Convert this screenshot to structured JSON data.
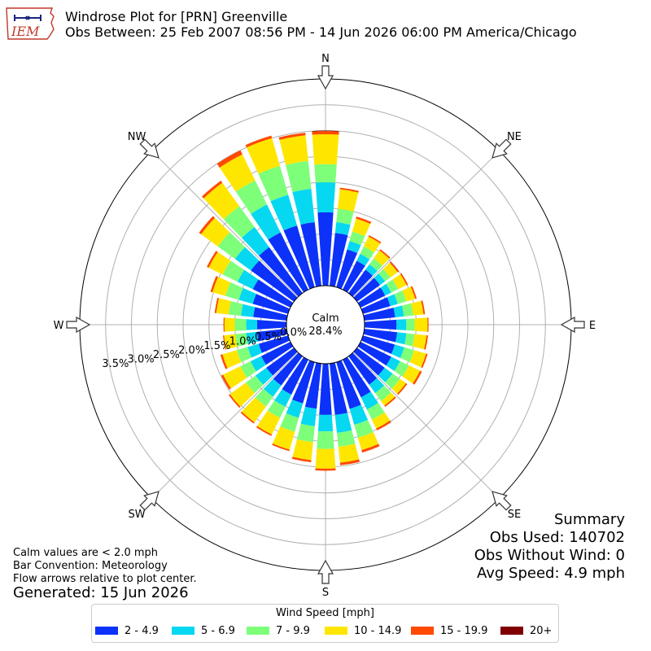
{
  "header": {
    "logo_text": "IEM",
    "title": "Windrose Plot for [PRN] Greenville",
    "subtitle": "Obs Between: 25 Feb 2007 08:56 PM - 14 Jun 2026 06:00 PM America/Chicago"
  },
  "summary": {
    "heading": "Summary",
    "obs_used": "Obs Used: 140702",
    "obs_without_wind": "Obs Without Wind: 0",
    "avg_speed": "Avg Speed: 4.9 mph"
  },
  "notes": {
    "calm_note": "Calm values are < 2.0 mph",
    "bar_convention": "Bar Convention: Meteorology",
    "flow_arrows": "Flow arrows relative to plot center.",
    "generated": "Generated: 15 Jun 2026"
  },
  "legend": {
    "title": "Wind Speed [mph]",
    "items": [
      {
        "label": "2 - 4.9",
        "color": "#0c31f9"
      },
      {
        "label": "5 - 6.9",
        "color": "#05d8f0"
      },
      {
        "label": "7 - 9.9",
        "color": "#7dff7a"
      },
      {
        "label": "10 - 14.9",
        "color": "#ffe600"
      },
      {
        "label": "15 - 19.9",
        "color": "#ff4a00"
      },
      {
        "label": "20+",
        "color": "#800000"
      }
    ]
  },
  "chart_data": {
    "type": "windrose",
    "title": "Windrose Plot for [PRN] Greenville",
    "calm_label": "Calm",
    "calm_value": "28.4%",
    "radial_unit": "%",
    "radial_ticks": [
      0.0,
      0.5,
      1.0,
      1.5,
      2.0,
      2.5,
      3.0,
      3.5
    ],
    "radial_tick_labels": [
      "0.0%",
      "0.5%",
      "1.0%",
      "1.5%",
      "2.0%",
      "2.5%",
      "3.0%",
      "3.5%"
    ],
    "rmax": 4.0,
    "compass_labels": [
      {
        "label": "N",
        "deg": 0
      },
      {
        "label": "NE",
        "deg": 45
      },
      {
        "label": "E",
        "deg": 90
      },
      {
        "label": "SE",
        "deg": 135
      },
      {
        "label": "S",
        "deg": 180
      },
      {
        "label": "SW",
        "deg": 225
      },
      {
        "label": "W",
        "deg": 270
      },
      {
        "label": "NW",
        "deg": 315
      }
    ],
    "bin_width_deg": 10,
    "speed_bins": [
      "2 - 4.9",
      "5 - 6.9",
      "7 - 9.9",
      "10 - 14.9",
      "15 - 19.9",
      "20+"
    ],
    "colors": [
      "#0c31f9",
      "#05d8f0",
      "#7dff7a",
      "#ffe600",
      "#ff4a00",
      "#800000"
    ],
    "directions": [
      {
        "deg": 0,
        "cum": [
          1.42,
          2.0,
          2.35,
          2.93,
          2.99,
          3.0
        ]
      },
      {
        "deg": 10,
        "cum": [
          1.03,
          1.24,
          1.5,
          1.88,
          1.91,
          1.91
        ]
      },
      {
        "deg": 20,
        "cum": [
          0.76,
          0.93,
          1.12,
          1.38,
          1.42,
          1.42
        ]
      },
      {
        "deg": 30,
        "cum": [
          0.62,
          0.77,
          0.93,
          1.14,
          1.17,
          1.17
        ]
      },
      {
        "deg": 40,
        "cum": [
          0.56,
          0.69,
          0.83,
          1.02,
          1.05,
          1.05
        ]
      },
      {
        "deg": 50,
        "cum": [
          0.55,
          0.67,
          0.8,
          0.97,
          1.0,
          1.0
        ]
      },
      {
        "deg": 60,
        "cum": [
          0.53,
          0.66,
          0.81,
          0.99,
          1.02,
          1.02
        ]
      },
      {
        "deg": 70,
        "cum": [
          0.55,
          0.7,
          0.87,
          1.05,
          1.08,
          1.08
        ]
      },
      {
        "deg": 80,
        "cum": [
          0.6,
          0.77,
          0.95,
          1.15,
          1.18,
          1.18
        ]
      },
      {
        "deg": 90,
        "cum": [
          0.62,
          0.81,
          0.97,
          1.22,
          1.24,
          1.24
        ]
      },
      {
        "deg": 100,
        "cum": [
          0.64,
          0.82,
          0.98,
          1.21,
          1.24,
          1.24
        ]
      },
      {
        "deg": 110,
        "cum": [
          0.64,
          0.83,
          1.03,
          1.27,
          1.3,
          1.3
        ]
      },
      {
        "deg": 120,
        "cum": [
          0.66,
          0.85,
          1.04,
          1.28,
          1.32,
          1.32
        ]
      },
      {
        "deg": 130,
        "cum": [
          0.66,
          0.85,
          1.03,
          1.17,
          1.2,
          1.2
        ]
      },
      {
        "deg": 140,
        "cum": [
          0.68,
          0.88,
          1.07,
          1.18,
          1.21,
          1.21
        ]
      },
      {
        "deg": 150,
        "cum": [
          0.81,
          1.07,
          1.29,
          1.48,
          1.52,
          1.52
        ]
      },
      {
        "deg": 160,
        "cum": [
          0.94,
          1.26,
          1.52,
          1.77,
          1.82,
          1.82
        ]
      },
      {
        "deg": 170,
        "cum": [
          1.0,
          1.35,
          1.62,
          1.93,
          1.98,
          1.98
        ]
      },
      {
        "deg": 180,
        "cum": [
          0.99,
          1.31,
          1.65,
          2.03,
          2.07,
          2.07
        ]
      },
      {
        "deg": 190,
        "cum": [
          0.88,
          1.22,
          1.53,
          1.88,
          1.92,
          1.92
        ]
      },
      {
        "deg": 200,
        "cum": [
          0.83,
          1.12,
          1.4,
          1.76,
          1.79,
          1.79
        ]
      },
      {
        "deg": 210,
        "cum": [
          0.75,
          1.01,
          1.25,
          1.61,
          1.64,
          1.64
        ]
      },
      {
        "deg": 220,
        "cum": [
          0.7,
          0.97,
          1.2,
          1.58,
          1.61,
          1.61
        ]
      },
      {
        "deg": 230,
        "cum": [
          0.66,
          0.92,
          1.15,
          1.53,
          1.56,
          1.56
        ]
      },
      {
        "deg": 240,
        "cum": [
          0.63,
          0.86,
          1.08,
          1.45,
          1.49,
          1.49
        ]
      },
      {
        "deg": 250,
        "cum": [
          0.59,
          0.81,
          1.03,
          1.32,
          1.36,
          1.36
        ]
      },
      {
        "deg": 260,
        "cum": [
          0.58,
          0.79,
          1.0,
          1.22,
          1.24,
          1.24
        ]
      },
      {
        "deg": 270,
        "cum": [
          0.57,
          0.78,
          1.0,
          1.2,
          1.22,
          1.22
        ]
      },
      {
        "deg": 280,
        "cum": [
          0.65,
          0.89,
          1.13,
          1.37,
          1.4,
          1.4
        ]
      },
      {
        "deg": 290,
        "cum": [
          0.71,
          0.99,
          1.26,
          1.52,
          1.56,
          1.56
        ]
      },
      {
        "deg": 300,
        "cum": [
          0.81,
          1.14,
          1.46,
          1.76,
          1.8,
          1.8
        ]
      },
      {
        "deg": 310,
        "cum": [
          1.03,
          1.41,
          1.82,
          2.22,
          2.27,
          2.27
        ]
      },
      {
        "deg": 320,
        "cum": [
          1.1,
          1.58,
          2.08,
          2.64,
          2.69,
          2.69
        ]
      },
      {
        "deg": 330,
        "cum": [
          1.23,
          1.83,
          2.35,
          2.91,
          3.0,
          3.0
        ]
      },
      {
        "deg": 340,
        "cum": [
          1.24,
          1.86,
          2.44,
          3.0,
          3.05,
          3.05
        ]
      },
      {
        "deg": 350,
        "cum": [
          1.24,
          1.89,
          2.43,
          2.93,
          2.98,
          2.98
        ]
      }
    ]
  }
}
